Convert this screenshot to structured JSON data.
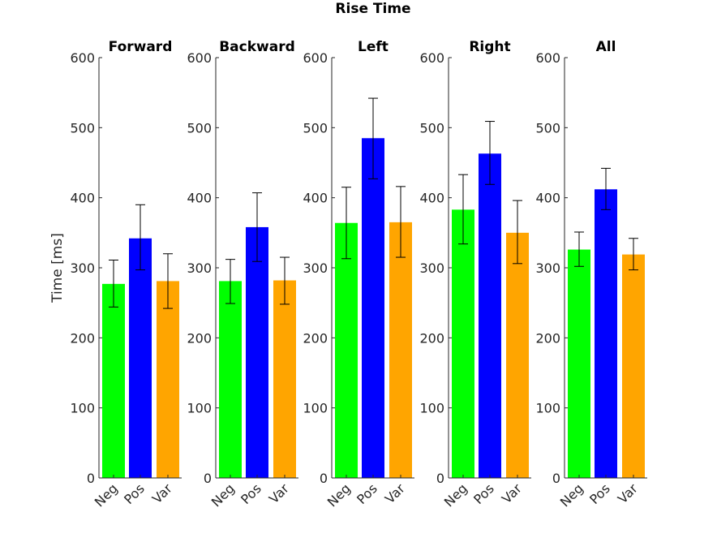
{
  "figure": {
    "title": "Rise Time"
  },
  "chart_data": [
    {
      "type": "bar",
      "title": "Forward",
      "ylabel": "Time [ms]",
      "ylim": [
        0,
        600
      ],
      "yticks": [
        0,
        100,
        200,
        300,
        400,
        500,
        600
      ],
      "categories": [
        "Neg",
        "Pos",
        "Var"
      ],
      "values": [
        277,
        342,
        281
      ],
      "errors": [
        [
          244,
          311
        ],
        [
          297,
          390
        ],
        [
          242,
          320
        ]
      ],
      "colors": [
        "#00ff00",
        "#0000ff",
        "#ffa500"
      ]
    },
    {
      "type": "bar",
      "title": "Backward",
      "ylabel": "",
      "ylim": [
        0,
        600
      ],
      "yticks": [
        0,
        100,
        200,
        300,
        400,
        500,
        600
      ],
      "categories": [
        "Neg",
        "Pos",
        "Var"
      ],
      "values": [
        281,
        358,
        282
      ],
      "errors": [
        [
          249,
          312
        ],
        [
          309,
          407
        ],
        [
          248,
          315
        ]
      ],
      "colors": [
        "#00ff00",
        "#0000ff",
        "#ffa500"
      ]
    },
    {
      "type": "bar",
      "title": "Left",
      "ylabel": "",
      "ylim": [
        0,
        600
      ],
      "yticks": [
        0,
        100,
        200,
        300,
        400,
        500,
        600
      ],
      "categories": [
        "Neg",
        "Pos",
        "Var"
      ],
      "values": [
        364,
        485,
        365
      ],
      "errors": [
        [
          313,
          415
        ],
        [
          427,
          542
        ],
        [
          315,
          416
        ]
      ],
      "colors": [
        "#00ff00",
        "#0000ff",
        "#ffa500"
      ]
    },
    {
      "type": "bar",
      "title": "Right",
      "ylabel": "",
      "ylim": [
        0,
        600
      ],
      "yticks": [
        0,
        100,
        200,
        300,
        400,
        500,
        600
      ],
      "categories": [
        "Neg",
        "Pos",
        "Var"
      ],
      "values": [
        383,
        463,
        350
      ],
      "errors": [
        [
          334,
          433
        ],
        [
          419,
          509
        ],
        [
          306,
          396
        ]
      ],
      "colors": [
        "#00ff00",
        "#0000ff",
        "#ffa500"
      ]
    },
    {
      "type": "bar",
      "title": "All",
      "ylabel": "",
      "ylim": [
        0,
        600
      ],
      "yticks": [
        0,
        100,
        200,
        300,
        400,
        500,
        600
      ],
      "categories": [
        "Neg",
        "Pos",
        "Var"
      ],
      "values": [
        326,
        412,
        319
      ],
      "errors": [
        [
          302,
          351
        ],
        [
          383,
          442
        ],
        [
          297,
          342
        ]
      ],
      "colors": [
        "#00ff00",
        "#0000ff",
        "#ffa500"
      ]
    }
  ]
}
